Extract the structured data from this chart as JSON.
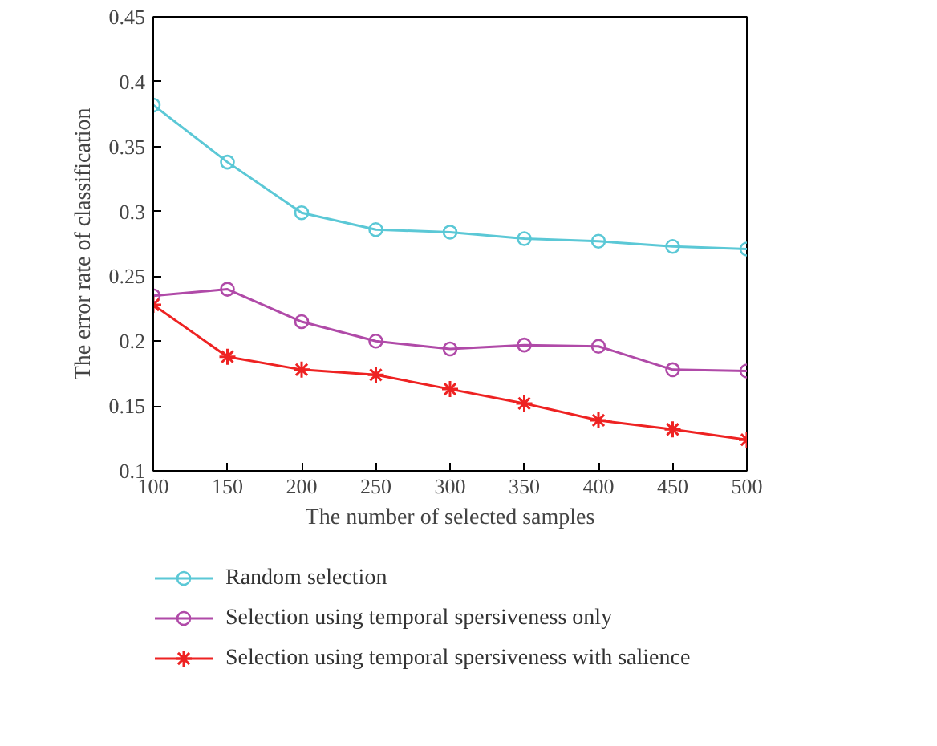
{
  "chart_data": {
    "type": "line",
    "xlabel": "The number of selected samples",
    "ylabel": "The error rate of classification",
    "x": [
      100,
      150,
      200,
      250,
      300,
      350,
      400,
      450,
      500
    ],
    "series": [
      {
        "name": "Random selection",
        "color": "#5bc8d6",
        "marker": "circle",
        "values": [
          0.382,
          0.338,
          0.299,
          0.286,
          0.284,
          0.279,
          0.277,
          0.273,
          0.271
        ]
      },
      {
        "name": "Selection using temporal spersiveness only",
        "color": "#b04aa8",
        "marker": "circle",
        "values": [
          0.235,
          0.24,
          0.215,
          0.2,
          0.194,
          0.197,
          0.196,
          0.178,
          0.177
        ]
      },
      {
        "name": "Selection using temporal spersiveness with salience",
        "color": "#ee2222",
        "marker": "cross",
        "values": [
          0.228,
          0.188,
          0.178,
          0.174,
          0.163,
          0.152,
          0.139,
          0.132,
          0.124
        ]
      }
    ],
    "xlim": [
      100,
      500
    ],
    "ylim": [
      0.1,
      0.45
    ],
    "xticks": [
      100,
      150,
      200,
      250,
      300,
      350,
      400,
      450,
      500
    ],
    "yticks": [
      0.1,
      0.15,
      0.2,
      0.25,
      0.3,
      0.35,
      0.4,
      0.45
    ],
    "grid": false,
    "legend": "bottom",
    "line_style": "solid"
  }
}
